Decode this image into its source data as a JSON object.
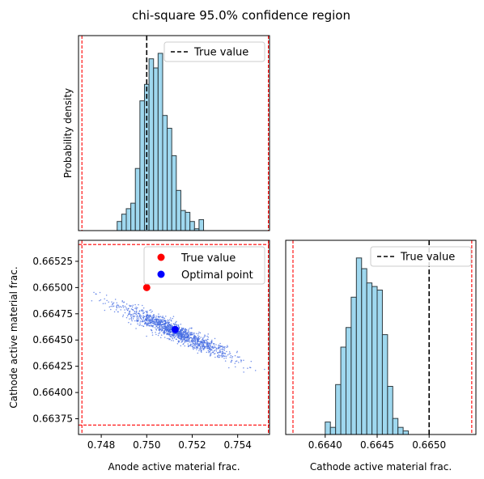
{
  "title": "chi-square 95.0% confidence region",
  "chart_data": [
    {
      "panel": "top-left",
      "type": "bar",
      "title": "",
      "xlabel": "",
      "ylabel": "Probability density",
      "xlim": [
        0.747,
        0.7554
      ],
      "ylim": [
        0,
        1.0
      ],
      "x_tick_labels_shown": false,
      "y_tick_labels_shown": false,
      "bin_width": 0.0002,
      "bin_edges_start": 0.7487,
      "counts": [
        0.05,
        0.09,
        0.12,
        0.15,
        0.34,
        0.71,
        0.8,
        0.94,
        0.89,
        0.97,
        0.63,
        0.56,
        0.41,
        0.22,
        0.11,
        0.1,
        0.05,
        0.01,
        0.06
      ],
      "bar_color": "#87CEEB",
      "true_value": 0.75,
      "true_value_label": "True value",
      "bounds": [
        0.74715,
        0.75535
      ],
      "legend_placement": "top-right"
    },
    {
      "panel": "bottom-left",
      "type": "scatter",
      "xlabel": "Anode active material frac.",
      "ylabel": "Cathode active material frac.",
      "xlim": [
        0.747,
        0.7554
      ],
      "ylim": [
        0.6636,
        0.66545
      ],
      "x_ticks": [
        0.748,
        0.75,
        0.752,
        0.754
      ],
      "x_tick_labels": [
        "0.748",
        "0.750",
        "0.752",
        "0.754"
      ],
      "y_ticks": [
        0.66375,
        0.664,
        0.66425,
        0.6645,
        0.66475,
        0.665,
        0.66525
      ],
      "y_tick_labels": [
        "0.66375",
        "0.66400",
        "0.66425",
        "0.66450",
        "0.66475",
        "0.66500",
        "0.66525"
      ],
      "cloud": {
        "n": 1400,
        "center": [
          0.75125,
          0.66458
        ],
        "major_axis_direction": [
          0.0022,
          -0.00022
        ],
        "major_sd": 0.55,
        "minor_axis_direction": [
          0.0004,
          8e-05
        ],
        "minor_sd": 0.35,
        "color": "#4169E1"
      },
      "true_point": [
        0.75,
        0.665
      ],
      "true_point_label": "True value",
      "true_point_color": "#ff0000",
      "optimal_point": [
        0.75125,
        0.6646
      ],
      "optimal_point_label": "Optimal point",
      "optimal_point_color": "#0000ff",
      "bounds_x": [
        0.74715,
        0.75535
      ],
      "bounds_y": [
        0.66369,
        0.66541
      ],
      "legend_placement": "top-right"
    },
    {
      "panel": "bottom-right",
      "type": "bar",
      "xlabel": "Cathode active material frac.",
      "ylabel": "",
      "xlim": [
        0.66362,
        0.66545
      ],
      "ylim": [
        0,
        1.0
      ],
      "x_ticks": [
        0.664,
        0.6645,
        0.665
      ],
      "x_tick_labels": [
        "0.6640",
        "0.6645",
        "0.6650"
      ],
      "y_tick_labels_shown": false,
      "bin_width": 5e-05,
      "bin_edges_start": 0.664,
      "counts": [
        0.07,
        0.04,
        0.28,
        0.49,
        0.6,
        0.77,
        0.99,
        0.93,
        0.85,
        0.83,
        0.81,
        0.56,
        0.27,
        0.09,
        0.04,
        0.02
      ],
      "bar_color": "#87CEEB",
      "true_value": 0.665,
      "true_value_label": "True value",
      "bounds": [
        0.66369,
        0.66541
      ],
      "legend_placement": "top-right"
    }
  ]
}
